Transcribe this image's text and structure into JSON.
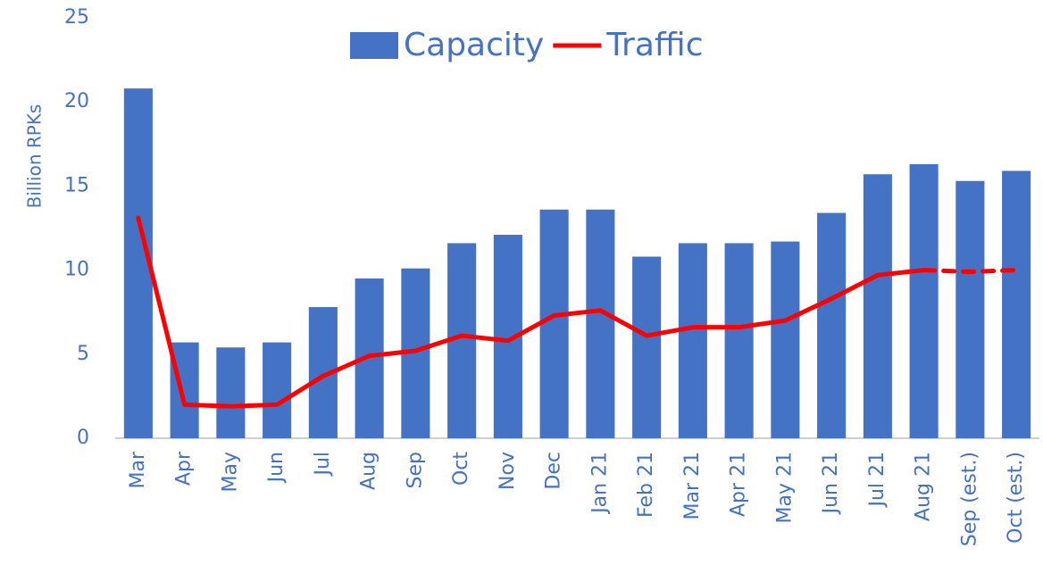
{
  "chart_data": {
    "type": "bar_line",
    "y_axis_label": "Billion RPKs",
    "categories": [
      "Mar",
      "Apr",
      "May",
      "Jun",
      "Jul",
      "Aug",
      "Sep",
      "Oct",
      "Nov",
      "Dec",
      "Jan 21",
      "Feb 21",
      "Mar 21",
      "Apr 21",
      "May 21",
      "Jun 21",
      "Jul 21",
      "Aug 21",
      "Sep (est.)",
      "Oct (est.)"
    ],
    "series": [
      {
        "name": "Capacity",
        "type": "bar",
        "color": "#4472c4",
        "values": [
          20.8,
          5.7,
          5.4,
          5.7,
          7.8,
          9.5,
          10.1,
          11.6,
          12.1,
          13.6,
          13.6,
          10.8,
          11.6,
          11.6,
          11.7,
          13.4,
          15.7,
          16.3,
          15.3,
          15.9
        ]
      },
      {
        "name": "Traffic",
        "type": "line",
        "color": "#ff0000",
        "dashed_from_index": 17,
        "values": [
          13.1,
          2.0,
          1.9,
          2.0,
          3.7,
          4.9,
          5.2,
          6.1,
          5.8,
          7.3,
          7.6,
          6.1,
          6.6,
          6.6,
          7.0,
          8.3,
          9.7,
          10.0,
          9.9,
          10.0
        ]
      }
    ],
    "ylim": [
      0,
      25
    ],
    "yticks": [
      0,
      5,
      10,
      15,
      20,
      25
    ],
    "grid": false,
    "legend": "top"
  }
}
